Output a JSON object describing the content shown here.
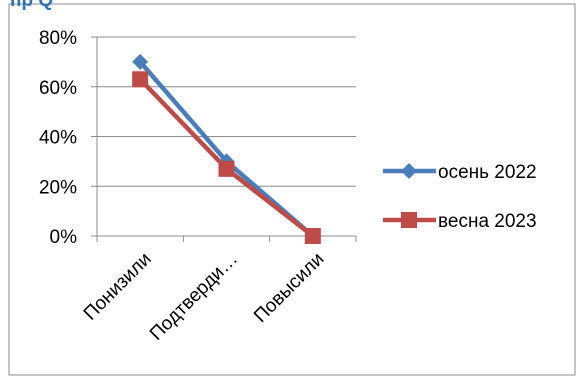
{
  "heading_fragment": "пр Q",
  "chart_data": {
    "type": "line",
    "categories": [
      "Понизили",
      "Подтверди…",
      "Повысили"
    ],
    "series": [
      {
        "name": "осень 2022",
        "values": [
          0.7,
          0.3,
          0.0
        ],
        "color": "#4a7ebb",
        "marker": "diamond"
      },
      {
        "name": "весна 2023",
        "values": [
          0.63,
          0.27,
          0.0
        ],
        "color": "#be4b48",
        "marker": "square"
      }
    ],
    "y_ticks": [
      "0%",
      "20%",
      "40%",
      "60%",
      "80%"
    ],
    "ylim": [
      0,
      0.8
    ],
    "grid": true,
    "legend_position": "right",
    "title": "",
    "xlabel": "",
    "ylabel": ""
  }
}
